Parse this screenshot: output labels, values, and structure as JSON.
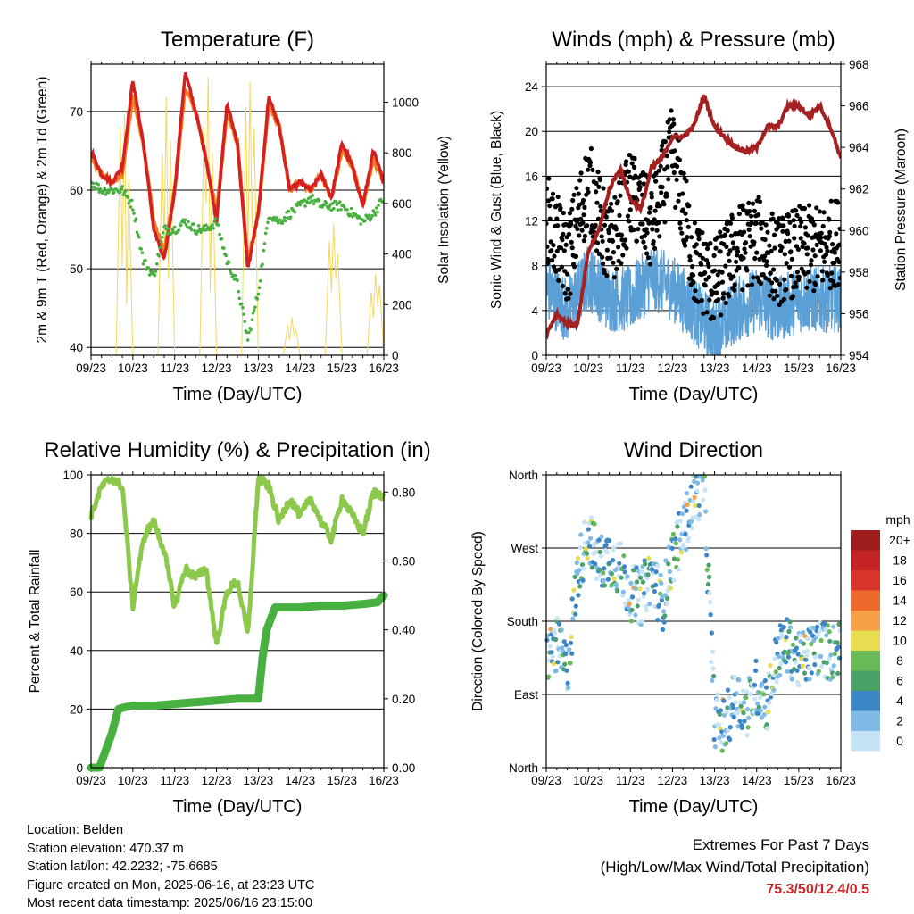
{
  "chart_data": [
    {
      "type": "line",
      "title": "Temperature (F)",
      "xlabel": "Time (Day/UTC)",
      "ylabel": "2m & 9m T (Red, Orange) & 2m Td (Green)",
      "ylabel_right": "Solar Insolation (Yellow)",
      "x_ticks": [
        "09/23",
        "10/23",
        "11/23",
        "12/23",
        "13/23",
        "14/23",
        "15/23",
        "16/23"
      ],
      "ylim": [
        39,
        76
      ],
      "y_ticks": [
        40,
        50,
        60,
        70
      ],
      "ylim_right": [
        0,
        1150
      ],
      "y_ticks_right": [
        0,
        200,
        400,
        600,
        800,
        1000
      ],
      "grid": "horizontal",
      "series": [
        {
          "name": "2m T",
          "color": "#d42020",
          "axis": "left",
          "x": [
            0,
            0.25,
            0.5,
            0.75,
            1,
            1.25,
            1.5,
            1.75,
            2,
            2.25,
            2.5,
            2.75,
            3,
            3.25,
            3.5,
            3.75,
            4,
            4.25,
            4.5,
            4.75,
            5,
            5.25,
            5.5,
            5.75,
            6,
            6.25,
            6.5,
            6.75,
            7
          ],
          "values": [
            65,
            62,
            61,
            63,
            74,
            66,
            55,
            51,
            60,
            75,
            70,
            64,
            56,
            71,
            66,
            50,
            57,
            72,
            68,
            60,
            61,
            60,
            62,
            59,
            66,
            63,
            58,
            65,
            61
          ]
        },
        {
          "name": "9m T",
          "color": "#f08020",
          "axis": "left",
          "x": [
            0,
            0.25,
            0.5,
            0.75,
            1,
            1.25,
            1.5,
            1.75,
            2,
            2.25,
            2.5,
            2.75,
            3,
            3.25,
            3.5,
            3.75,
            4,
            4.25,
            4.5,
            4.75,
            5,
            5.25,
            5.5,
            5.75,
            6,
            6.25,
            6.5,
            6.75,
            7
          ],
          "values": [
            64,
            62,
            61,
            62,
            72,
            66,
            56,
            52,
            60,
            73,
            70,
            64,
            57,
            70,
            66,
            51,
            57,
            71,
            68,
            60,
            61,
            60,
            62,
            59,
            65,
            63,
            58,
            64,
            61
          ]
        },
        {
          "name": "2m Td",
          "color": "#48b040",
          "axis": "left",
          "x": [
            0,
            0.25,
            0.5,
            0.75,
            1,
            1.25,
            1.5,
            1.75,
            2,
            2.25,
            2.5,
            2.75,
            3,
            3.25,
            3.5,
            3.75,
            4,
            4.25,
            4.5,
            4.75,
            5,
            5.25,
            5.5,
            5.75,
            6,
            6.25,
            6.5,
            6.75,
            7
          ],
          "values": [
            61,
            60,
            60,
            60,
            58,
            51,
            49,
            55,
            55,
            56,
            55,
            55,
            56,
            51,
            48,
            41,
            47,
            57,
            56,
            57,
            58,
            59,
            58,
            58,
            58,
            57,
            56,
            57,
            59
          ]
        },
        {
          "name": "Solar Insolation",
          "color": "#f5d85a",
          "axis": "right",
          "x": [
            0,
            0.6,
            0.7,
            0.75,
            0.8,
            0.85,
            0.9,
            1,
            1.6,
            1.7,
            1.75,
            1.8,
            1.85,
            1.9,
            2,
            2.6,
            2.7,
            2.75,
            2.8,
            2.85,
            2.9,
            3,
            3.6,
            3.7,
            3.75,
            3.8,
            3.85,
            3.9,
            4,
            4.6,
            4.7,
            4.75,
            4.8,
            4.85,
            4.9,
            5,
            5.6,
            5.7,
            5.75,
            5.8,
            5.85,
            5.9,
            6,
            6.6,
            6.7,
            6.75,
            6.8,
            6.85,
            6.9,
            7
          ],
          "values": [
            0,
            0,
            900,
            350,
            950,
            200,
            700,
            0,
            0,
            800,
            450,
            1020,
            300,
            850,
            0,
            0,
            900,
            600,
            1100,
            250,
            800,
            0,
            0,
            980,
            400,
            1080,
            500,
            900,
            0,
            0,
            120,
            60,
            150,
            80,
            100,
            0,
            0,
            450,
            250,
            520,
            300,
            400,
            0,
            0,
            250,
            150,
            320,
            200,
            280,
            0
          ]
        }
      ]
    },
    {
      "type": "scatter",
      "title": "Winds (mph) & Pressure (mb)",
      "xlabel": "Time (Day/UTC)",
      "ylabel": "Sonic Wind & Gust (Blue, Black)",
      "ylabel_right": "Station Pressure (Maroon)",
      "x_ticks": [
        "09/23",
        "10/23",
        "11/23",
        "12/23",
        "13/23",
        "14/23",
        "15/23",
        "16/23"
      ],
      "ylim": [
        0,
        26
      ],
      "y_ticks": [
        0,
        4,
        8,
        12,
        16,
        20,
        24
      ],
      "ylim_right": [
        954,
        968
      ],
      "y_ticks_right": [
        954,
        956,
        958,
        960,
        962,
        964,
        966,
        968
      ],
      "grid": "horizontal",
      "series": [
        {
          "name": "Sonic Wind",
          "color": "#5a9fd6",
          "axis": "left",
          "x": [
            0,
            0.5,
            1,
            1.5,
            2,
            2.5,
            3,
            3.5,
            4,
            4.5,
            5,
            5.5,
            6,
            6.5,
            7
          ],
          "values": [
            6,
            4,
            7,
            5,
            5,
            7,
            6,
            4,
            2,
            4,
            5,
            4,
            5,
            5,
            5
          ]
        },
        {
          "name": "Gust",
          "color": "#000000",
          "axis": "left",
          "x": [
            0,
            0.5,
            1,
            1.5,
            2,
            2.5,
            3,
            3.5,
            4,
            4.5,
            5,
            5.5,
            6,
            6.5,
            7
          ],
          "values": [
            12,
            8,
            15,
            9,
            14,
            11,
            18,
            8,
            6,
            9,
            10,
            8,
            9,
            9,
            10
          ]
        },
        {
          "name": "Station Pressure",
          "color": "#a52020",
          "axis": "right",
          "x": [
            0,
            0.25,
            0.5,
            0.75,
            1,
            1.25,
            1.5,
            1.75,
            2,
            2.25,
            2.5,
            2.75,
            3,
            3.25,
            3.5,
            3.75,
            4,
            4.25,
            4.5,
            4.75,
            5,
            5.25,
            5.5,
            5.75,
            6,
            6.25,
            6.5,
            6.75,
            7
          ],
          "values": [
            955,
            956,
            955.5,
            955.5,
            959,
            960,
            962,
            963,
            961.5,
            961,
            963,
            963.5,
            964.5,
            964.5,
            965,
            966.5,
            965,
            964.5,
            964,
            963.8,
            964,
            965,
            965,
            966,
            966,
            965.5,
            966,
            965,
            963.5
          ]
        }
      ]
    },
    {
      "type": "line",
      "title": "Relative Humidity (%) & Precipitation (in)",
      "xlabel": "Time (Day/UTC)",
      "ylabel": "Percent & Total Rainfall",
      "x_ticks": [
        "09/23",
        "10/23",
        "11/23",
        "12/23",
        "13/23",
        "14/23",
        "15/23",
        "16/23"
      ],
      "ylim": [
        0,
        100
      ],
      "y_ticks": [
        0,
        20,
        40,
        60,
        80,
        100
      ],
      "ylim_right": [
        0,
        0.85
      ],
      "y_ticks_right": [
        "0.00",
        "0.20",
        "0.40",
        "0.60",
        "0.80"
      ],
      "grid": "horizontal",
      "series": [
        {
          "name": "Relative Humidity",
          "color": "#8cc84b",
          "axis": "left",
          "x": [
            0,
            0.25,
            0.5,
            0.75,
            1,
            1.15,
            1.3,
            1.5,
            1.75,
            2,
            2.25,
            2.5,
            2.75,
            3,
            3.25,
            3.5,
            3.75,
            4,
            4.25,
            4.5,
            4.75,
            5,
            5.25,
            5.5,
            5.75,
            6,
            6.25,
            6.5,
            6.75,
            7
          ],
          "values": [
            86,
            96,
            99,
            96,
            55,
            70,
            80,
            84,
            74,
            55,
            68,
            65,
            68,
            42,
            60,
            64,
            45,
            99,
            96,
            84,
            92,
            86,
            92,
            84,
            78,
            92,
            86,
            80,
            94,
            93
          ]
        },
        {
          "name": "Total Precipitation",
          "color": "#48b040",
          "axis": "right",
          "x": [
            0,
            0.2,
            0.5,
            0.65,
            0.8,
            1,
            1.5,
            2,
            2.5,
            3,
            3.5,
            4,
            4.1,
            4.2,
            4.4,
            4.6,
            5,
            5.5,
            6,
            6.5,
            6.85,
            7
          ],
          "values": [
            0,
            0,
            0.1,
            0.17,
            0.175,
            0.18,
            0.18,
            0.185,
            0.19,
            0.195,
            0.2,
            0.2,
            0.32,
            0.4,
            0.465,
            0.465,
            0.465,
            0.47,
            0.47,
            0.475,
            0.48,
            0.5
          ]
        }
      ]
    },
    {
      "type": "scatter",
      "title": "Wind Direction",
      "xlabel": "Time (Day/UTC)",
      "ylabel": "Direction (Colored By Speed)",
      "x_ticks": [
        "09/23",
        "10/23",
        "11/23",
        "12/23",
        "13/23",
        "14/23",
        "15/23",
        "16/23"
      ],
      "ylim": [
        0,
        360
      ],
      "y_ticks": [
        "North",
        "East",
        "South",
        "West",
        "North"
      ],
      "legend_title": "mph",
      "legend": [
        "20+",
        "18",
        "16",
        "14",
        "12",
        "10",
        "8",
        "6",
        "4",
        "2",
        "0"
      ],
      "legend_colors": [
        "#9e1c1c",
        "#c42424",
        "#d8342a",
        "#ee6a2c",
        "#f6a04a",
        "#e8dc50",
        "#68ba58",
        "#48a268",
        "#3c86c6",
        "#80bae6",
        "#c6e4f6"
      ],
      "series": [
        {
          "name": "Direction",
          "x": [
            0,
            0.25,
            0.5,
            0.75,
            1,
            1.25,
            1.5,
            1.75,
            2,
            2.25,
            2.5,
            2.75,
            3,
            3.25,
            3.5,
            3.75,
            4,
            4.25,
            4.5,
            4.75,
            5,
            5.25,
            5.5,
            5.75,
            6,
            6.25,
            6.5,
            6.75,
            7
          ],
          "values": [
            135,
            150,
            120,
            240,
            290,
            250,
            260,
            245,
            215,
            210,
            240,
            200,
            260,
            290,
            330,
            350,
            60,
            50,
            90,
            70,
            100,
            80,
            140,
            150,
            130,
            140,
            150,
            140,
            150
          ]
        }
      ]
    }
  ],
  "info": {
    "location": "Location: Belden",
    "elevation": "Station elevation: 470.37 m",
    "latlon": "Station lat/lon: 42.2232; -75.6685",
    "created": "Figure created on Mon, 2025-06-16, at 23:23 UTC",
    "recent": "Most recent data timestamp: 2025/06/16 23:15:00"
  },
  "extremes": {
    "title": "Extremes For Past 7 Days",
    "subtitle": "(High/Low/Max Wind/Total Precipitation)",
    "value": "75.3/50/12.4/0.5",
    "value_color": "#c8282a"
  }
}
